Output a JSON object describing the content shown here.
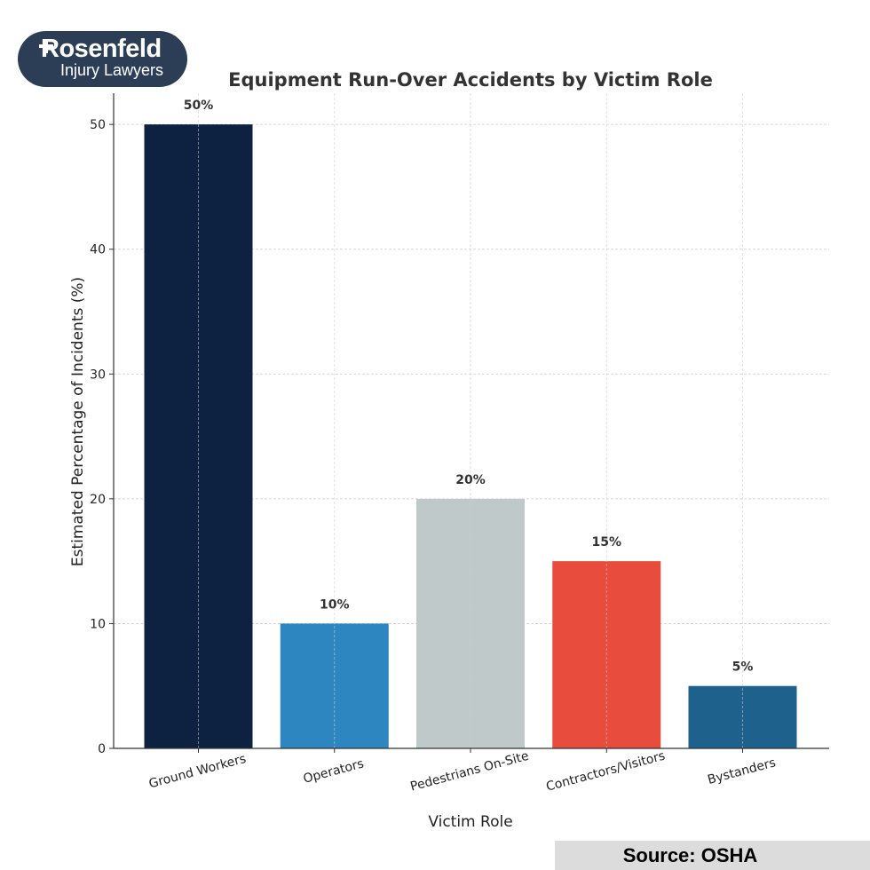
{
  "logo": {
    "brand": "Rosenfeld",
    "tagline": "Injury Lawyers",
    "color": "#2c3e56"
  },
  "source": "Source: OSHA",
  "chart_data": {
    "type": "bar",
    "title": "Equipment Run-Over Accidents by Victim Role",
    "xlabel": "Victim Role",
    "ylabel": "Estimated Percentage of Incidents (%)",
    "categories": [
      "Ground Workers",
      "Operators",
      "Pedestrians On-Site",
      "Contractors/Visitors",
      "Bystanders"
    ],
    "values": [
      50,
      10,
      20,
      15,
      5
    ],
    "value_labels": [
      "50%",
      "10%",
      "20%",
      "15%",
      "5%"
    ],
    "colors": [
      "#0d2240",
      "#2e86c1",
      "#bfc9ca",
      "#e74c3c",
      "#1f618d"
    ],
    "ylim": [
      0,
      52.5
    ],
    "yticks": [
      0,
      10,
      20,
      30,
      40,
      50
    ],
    "grid": true
  }
}
